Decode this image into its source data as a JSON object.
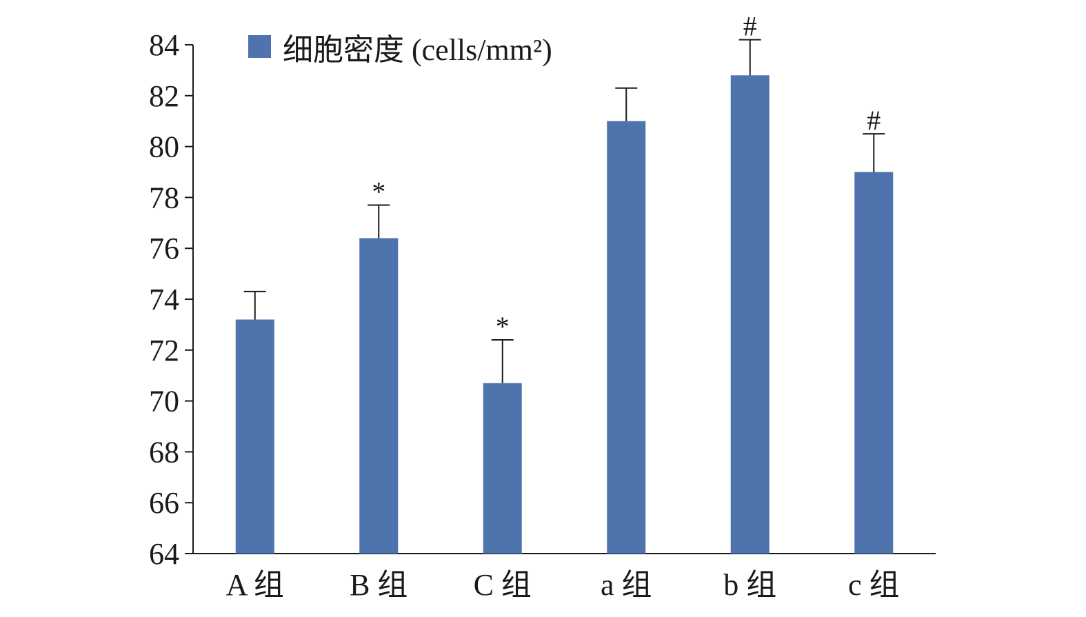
{
  "chart_data": {
    "type": "bar",
    "categories": [
      "A 组",
      "B 组",
      "C 组",
      "a 组",
      "b 组",
      "c 组"
    ],
    "series": [
      {
        "name": "细胞密度 (cells/mm²)",
        "values": [
          73.2,
          76.4,
          70.7,
          81.0,
          82.8,
          79.0
        ],
        "errors": [
          1.1,
          1.3,
          1.7,
          1.3,
          1.4,
          1.5
        ],
        "color": "#4f73ad"
      }
    ],
    "annotations": [
      "",
      "*",
      "*",
      "",
      "#",
      "#"
    ],
    "ylim": [
      64,
      84
    ],
    "yticks": [
      "64",
      "66",
      "68",
      "70",
      "72",
      "74",
      "76",
      "78",
      "80",
      "82",
      "84"
    ],
    "grid": false,
    "legend_position": "top-left"
  }
}
